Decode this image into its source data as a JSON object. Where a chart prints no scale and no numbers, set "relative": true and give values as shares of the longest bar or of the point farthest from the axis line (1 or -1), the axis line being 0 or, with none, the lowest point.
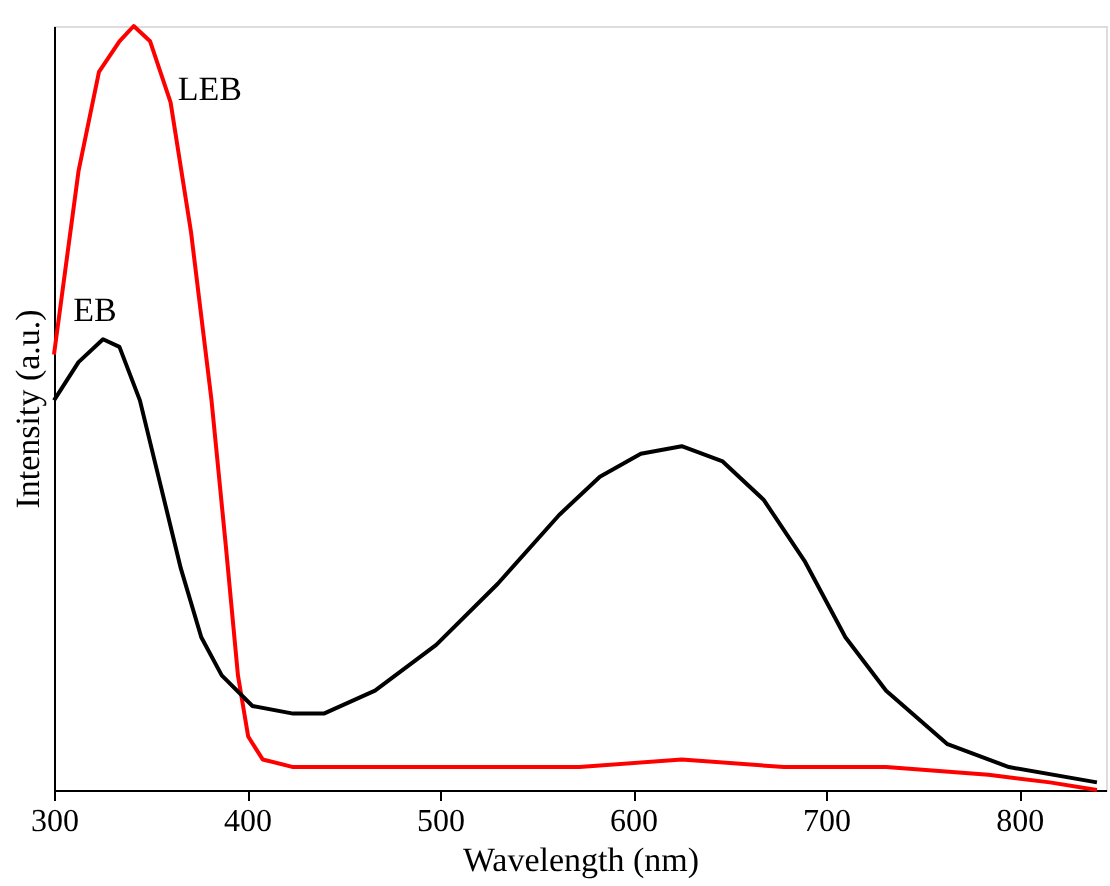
{
  "chart_data": {
    "type": "line",
    "xlabel": "Wavelength (nm)",
    "ylabel": "Intensity (a.u.)",
    "relative": true,
    "xlim": [
      300,
      845
    ],
    "xticks": [
      300,
      400,
      500,
      600,
      700,
      800
    ],
    "grid": false,
    "legend": false,
    "line_style": "solid",
    "marker": "none",
    "series": [
      {
        "name": "LEB",
        "color": "#ff0000",
        "x": [
          300,
          312.7,
          323.3,
          333.9,
          341.3,
          349.8,
          360.4,
          371,
          381.6,
          389,
          395.3,
          400.6,
          408.1,
          423.9,
          466.3,
          572.2,
          625.2,
          678.2,
          731.1,
          784.1,
          815.9,
          840.3
        ],
        "values": [
          0.57,
          0.81,
          0.94,
          0.98,
          1,
          0.98,
          0.9,
          0.73,
          0.51,
          0.32,
          0.15,
          0.07,
          0.04,
          0.03,
          0.03,
          0.03,
          0.04,
          0.03,
          0.03,
          0.02,
          0.01,
          0.0
        ]
      },
      {
        "name": "EB",
        "color": "#000000",
        "x": [
          300,
          312.7,
          325.4,
          333.9,
          344.5,
          355.1,
          365.7,
          376.3,
          386.9,
          402.8,
          423.9,
          439.8,
          466.3,
          498,
          529.9,
          561.7,
          582.8,
          604,
          625.2,
          646.4,
          667.6,
          688.8,
          710,
          731.1,
          762.9,
          794.7,
          840.3
        ],
        "values": [
          0.51,
          0.56,
          0.59,
          0.58,
          0.51,
          0.4,
          0.29,
          0.2,
          0.15,
          0.11,
          0.1,
          0.1,
          0.13,
          0.19,
          0.27,
          0.36,
          0.41,
          0.44,
          0.45,
          0.43,
          0.38,
          0.3,
          0.2,
          0.13,
          0.06,
          0.03,
          0.01
        ]
      }
    ]
  }
}
